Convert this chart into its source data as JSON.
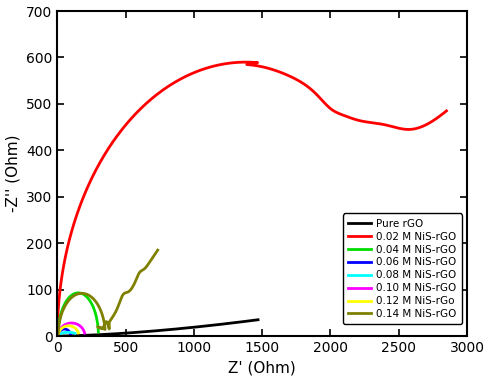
{
  "title": "",
  "xlabel": "Z' (Ohm)",
  "ylabel": "-Z'' (Ohm)",
  "xlim": [
    0,
    3000
  ],
  "ylim": [
    0,
    700
  ],
  "xticks": [
    0,
    500,
    1000,
    1500,
    2000,
    2500,
    3000
  ],
  "yticks": [
    0,
    100,
    200,
    300,
    400,
    500,
    600,
    700
  ],
  "legend_loc": "lower right",
  "series": [
    {
      "label": "Pure rGO",
      "color": "#000000",
      "lw": 2.0,
      "type": "linear_steep"
    },
    {
      "label": "0.02 M NiS-rGO",
      "color": "#ff0000",
      "lw": 2.0,
      "type": "large_arc"
    },
    {
      "label": "0.04 M NiS-rGO",
      "color": "#00dd00",
      "lw": 2.0,
      "type": "small_arc_green"
    },
    {
      "label": "0.06 M NiS-rGO",
      "color": "#0000ff",
      "lw": 2.0,
      "type": "tiny_blue"
    },
    {
      "label": "0.08 M NiS-rGO",
      "color": "#00ffff",
      "lw": 2.0,
      "type": "tiny_cyan"
    },
    {
      "label": "0.10 M NiS-rGO",
      "color": "#ff00ff",
      "lw": 2.0,
      "type": "tiny_magenta"
    },
    {
      "label": "0.12 M NiS-rGo",
      "color": "#ffff00",
      "lw": 2.0,
      "type": "tiny_yellow"
    },
    {
      "label": "0.14 M NiS-rGO",
      "color": "#808000",
      "lw": 2.0,
      "type": "olive_wiggly"
    }
  ]
}
